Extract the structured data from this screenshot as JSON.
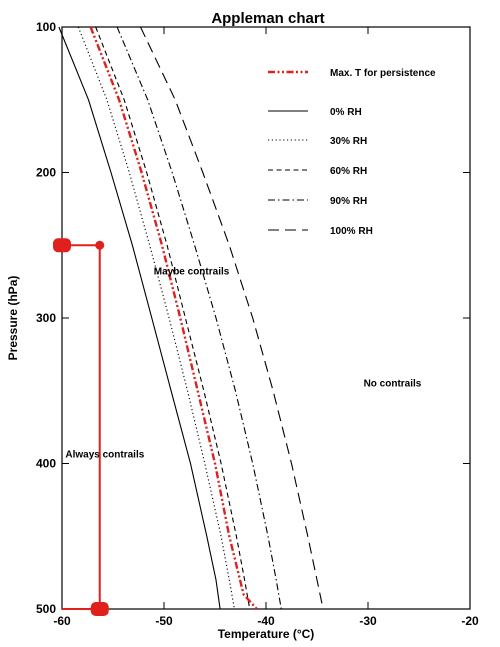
{
  "chart_data": {
    "type": "line",
    "title": "Appleman chart",
    "xlabel": "Temperature (°C)",
    "ylabel": "Pressure (hPa)",
    "xlim": [
      -60,
      -20
    ],
    "ylim": [
      100,
      500
    ],
    "y_inverted": true,
    "xticks": [
      -60,
      -50,
      -40,
      -30,
      -20
    ],
    "yticks": [
      100,
      200,
      300,
      400,
      500
    ],
    "grid": false,
    "legend_position": "top-right",
    "series": [
      {
        "name": "Max. T for persistence",
        "color": "#e0201c",
        "style": "dash-dot-dot",
        "x": [
          -57.2,
          -54.4,
          -52.2,
          -50.2,
          -48.4,
          -46.7,
          -45.0,
          -43.6,
          -42.2,
          -40.9
        ],
        "y": [
          100,
          150,
          200,
          250,
          300,
          350,
          400,
          450,
          490,
          500
        ]
      },
      {
        "name": "0% RH",
        "color": "#000000",
        "style": "solid",
        "x": [
          -60.3,
          -57.4,
          -55.2,
          -53.1,
          -51.2,
          -49.3,
          -47.4,
          -45.8,
          -44.9,
          -44.5
        ],
        "y": [
          100,
          150,
          200,
          250,
          300,
          350,
          400,
          450,
          480,
          500
        ]
      },
      {
        "name": "30% RH",
        "color": "#000000",
        "style": "dotted",
        "x": [
          -58.4,
          -55.6,
          -53.4,
          -51.4,
          -49.5,
          -47.7,
          -46.0,
          -44.4,
          -43.6,
          -43.1
        ],
        "y": [
          100,
          150,
          200,
          250,
          300,
          350,
          400,
          450,
          480,
          500
        ]
      },
      {
        "name": "60% RH",
        "color": "#000000",
        "style": "dashed",
        "x": [
          -56.7,
          -53.9,
          -51.7,
          -49.7,
          -47.9,
          -46.1,
          -44.4,
          -42.9,
          -42.1,
          -41.6
        ],
        "y": [
          100,
          150,
          200,
          250,
          300,
          350,
          400,
          450,
          480,
          500
        ]
      },
      {
        "name": "90% RH",
        "color": "#000000",
        "style": "dash-dot",
        "x": [
          -54.6,
          -51.6,
          -49.2,
          -47.0,
          -44.9,
          -43.0,
          -41.3,
          -39.8,
          -39.0,
          -38.5
        ],
        "y": [
          100,
          150,
          200,
          250,
          300,
          350,
          400,
          450,
          480,
          500
        ]
      },
      {
        "name": "100% RH",
        "color": "#000000",
        "style": "long-dash",
        "x": [
          -52.3,
          -48.9,
          -46.2,
          -43.6,
          -41.3,
          -39.3,
          -37.5,
          -35.9,
          -35.0,
          -34.4
        ],
        "y": [
          100,
          150,
          200,
          250,
          300,
          350,
          400,
          450,
          480,
          500
        ]
      }
    ],
    "highlight": {
      "color": "#e0201c",
      "bracket_top": {
        "x_left": -60,
        "x_right": -56.3,
        "y": 250
      },
      "bracket_bottom": {
        "x_left": -60,
        "x_right": -56.3,
        "y": 500
      }
    },
    "annotations": [
      {
        "text": "Maybe contrails",
        "x": -47.3,
        "y": 270
      },
      {
        "text": "No contrails",
        "x": -27.6,
        "y": 347
      },
      {
        "text": "Always contrails",
        "x": -55.8,
        "y": 396
      }
    ]
  }
}
